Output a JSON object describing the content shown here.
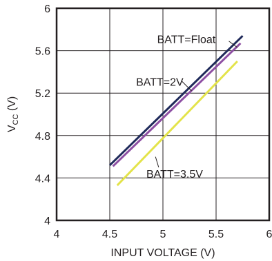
{
  "chart_data": {
    "type": "line",
    "title": "",
    "xlabel": "INPUT VOLTAGE (V)",
    "ylabel_main": "V",
    "ylabel_sub": "CC",
    "ylabel_unit": " (V)",
    "xlim": [
      4,
      6
    ],
    "ylim": [
      4,
      6
    ],
    "x_ticks": [
      {
        "value": 4,
        "label": "4"
      },
      {
        "value": 4.5,
        "label": "4.5"
      },
      {
        "value": 5,
        "label": "5"
      },
      {
        "value": 5.5,
        "label": "5.5"
      },
      {
        "value": 6,
        "label": "6"
      }
    ],
    "y_ticks": [
      {
        "value": 4,
        "label": "4"
      },
      {
        "value": 4.4,
        "label": "4.4"
      },
      {
        "value": 4.8,
        "label": "4.8"
      },
      {
        "value": 5.2,
        "label": "5.2"
      },
      {
        "value": 5.6,
        "label": "5.6"
      },
      {
        "value": 6,
        "label": "6"
      }
    ],
    "grid": true,
    "series": [
      {
        "name": "BATT=Float",
        "color": "#1f2a5a",
        "x": [
          4.5,
          5.75
        ],
        "y": [
          4.52,
          5.74
        ]
      },
      {
        "name": "BATT=2V",
        "color": "#8d4fa3",
        "x": [
          4.53,
          5.73
        ],
        "y": [
          4.51,
          5.67
        ]
      },
      {
        "name": "BATT=3.5V",
        "color": "#e3e34a",
        "x": [
          4.57,
          5.7
        ],
        "y": [
          4.33,
          5.5
        ]
      }
    ],
    "annotations": [
      {
        "series": "BATT=Float",
        "text": "BATT=Float",
        "x": 5.22,
        "y": 5.71,
        "pointer": [
          [
            5.62,
            5.69
          ],
          [
            5.7,
            5.63
          ]
        ]
      },
      {
        "series": "BATT=2V",
        "text": "BATT=2V",
        "x": 4.97,
        "y": 5.31,
        "pointer": [
          [
            5.18,
            5.31
          ],
          [
            5.27,
            5.22
          ]
        ]
      },
      {
        "series": "BATT=3.5V",
        "text": "BATT=3.5V",
        "x": 5.11,
        "y": 4.44,
        "pointer": [
          [
            4.93,
            4.6
          ],
          [
            4.96,
            4.5
          ]
        ]
      }
    ]
  }
}
